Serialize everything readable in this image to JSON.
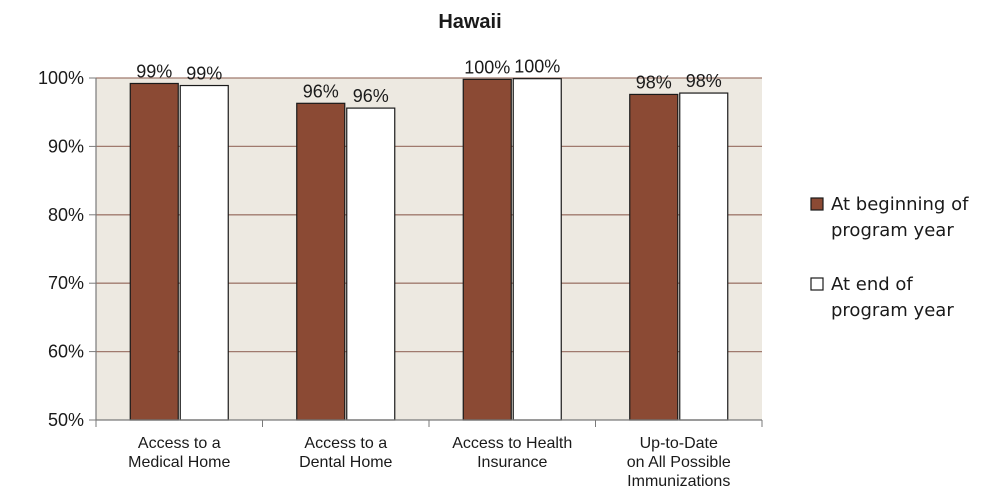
{
  "chart_data": {
    "type": "bar",
    "title": "Hawaii",
    "categories": [
      [
        "Access to a",
        "Medical Home"
      ],
      [
        "Access to a",
        "Dental Home"
      ],
      [
        "Access to Health",
        "Insurance"
      ],
      [
        "Up-to-Date",
        "on All Possible",
        "Immunizations"
      ]
    ],
    "series": [
      {
        "name": [
          "At beginning of",
          "program year"
        ],
        "color": "#8b4a34",
        "values": [
          99.2,
          96.3,
          99.8,
          97.6
        ],
        "labels": [
          "99%",
          "96%",
          "100%",
          "98%"
        ]
      },
      {
        "name": [
          "At end of",
          "program year"
        ],
        "color": "#ffffff",
        "values": [
          98.9,
          95.6,
          99.9,
          97.8
        ],
        "labels": [
          "99%",
          "96%",
          "100%",
          "98%"
        ]
      }
    ],
    "ylim": [
      50,
      100
    ],
    "yticks": [
      50,
      60,
      70,
      80,
      90,
      100
    ],
    "ytick_labels": [
      "50%",
      "60%",
      "70%",
      "80%",
      "90%",
      "100%"
    ],
    "plot_background": "#ede9e1",
    "gridline_color": "#a07a6e",
    "grid": true,
    "legend_position": "right"
  }
}
